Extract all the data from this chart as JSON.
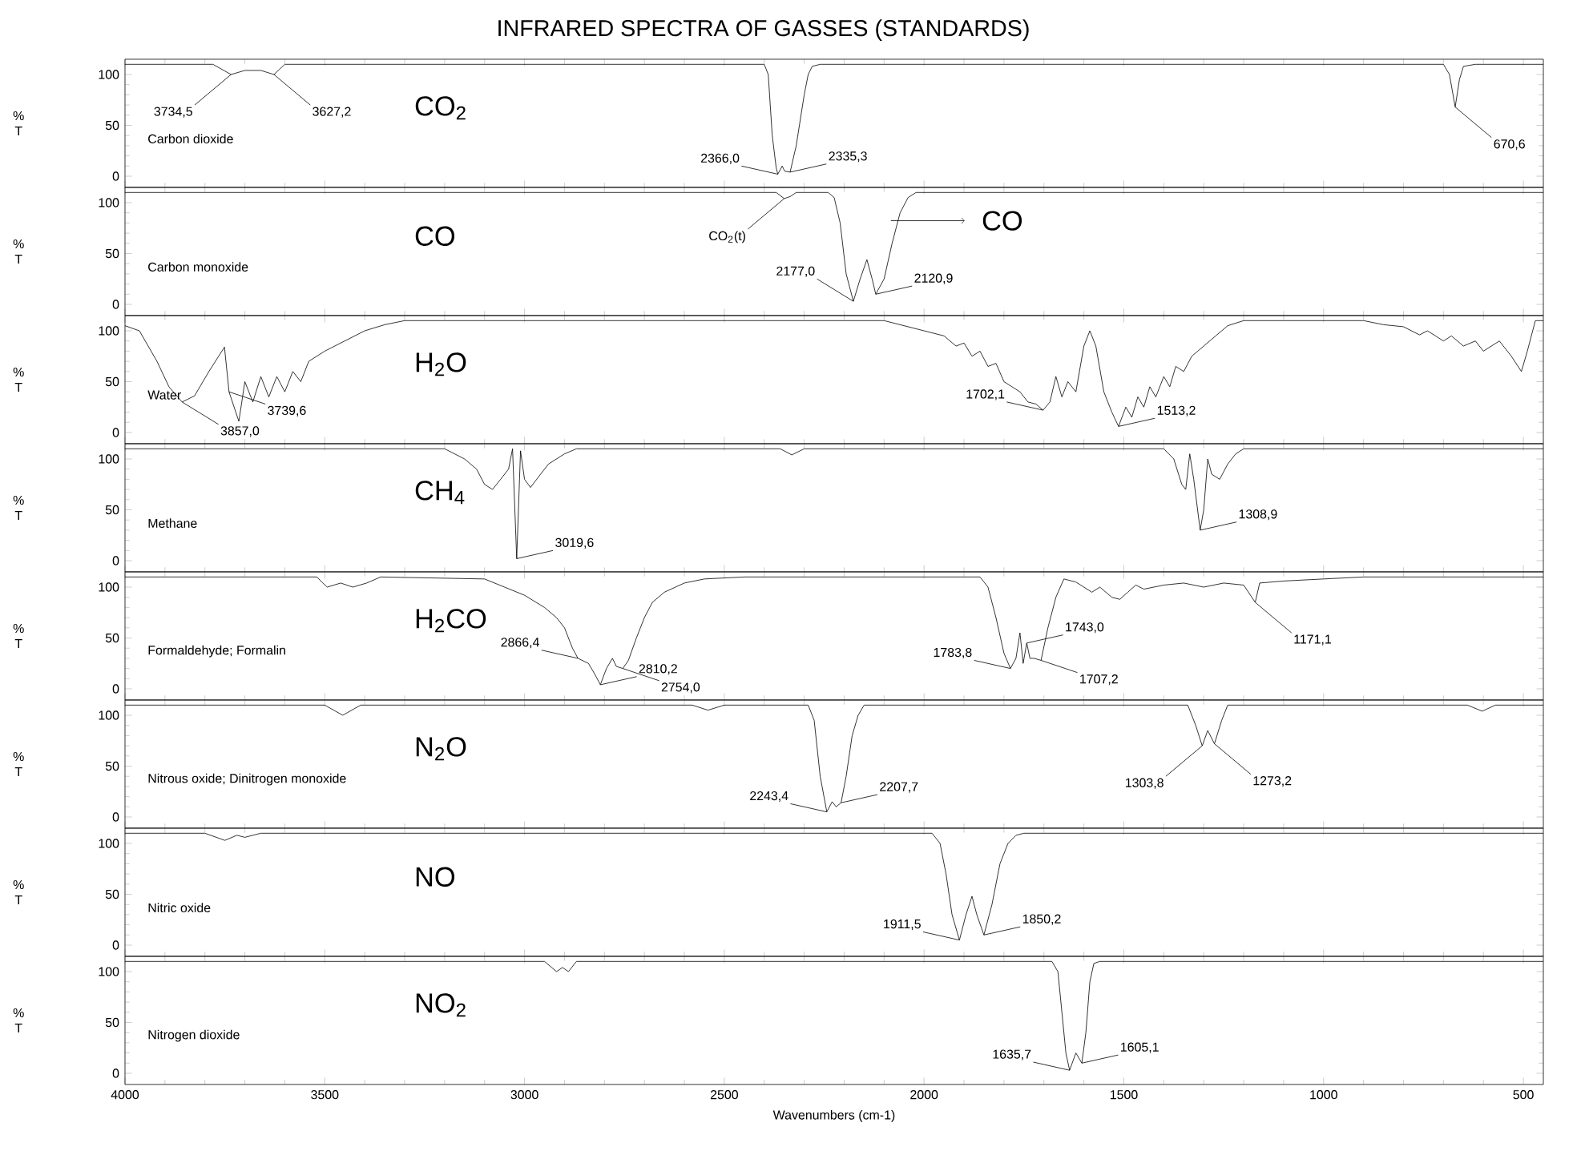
{
  "chart_data": [
    {
      "type": "line",
      "title": "INFRARED SPECTRA OF GASSES (STANDARDS)",
      "ylabel": "% T",
      "color": "#000000",
      "xlim": [
        4000,
        450
      ],
      "ylim": [
        -11,
        115
      ],
      "xticks": [
        4000,
        3500,
        3000,
        2500,
        2000,
        1500,
        1000,
        500
      ],
      "yticks": [
        0,
        50,
        100
      ],
      "tick_labels": "y",
      "x": [
        4000,
        3780,
        3734.5,
        3700,
        3660,
        3627.2,
        3600,
        2400,
        2390,
        2380,
        2370,
        2366,
        2355,
        2349,
        2335.3,
        2320,
        2300,
        2290,
        2280,
        2260,
        700,
        685,
        670.6,
        660,
        650,
        620,
        450
      ],
      "values": [
        110,
        110,
        100,
        104,
        104,
        100,
        110,
        110,
        100,
        40,
        8,
        2,
        10,
        5,
        4,
        30,
        80,
        100,
        108,
        110,
        110,
        100,
        68,
        95,
        108,
        110,
        110
      ],
      "annotations": [
        "Carbon dioxide",
        "CO$_{2}$",
        {
          "text": "3734,5",
          "x": 3734.5,
          "y": 100
        },
        {
          "text": "3627,2",
          "x": 3627.2,
          "y": 100
        },
        {
          "text": "2366,0",
          "x": 2366.0,
          "y": 2
        },
        {
          "text": "2335,3",
          "x": 2335.3,
          "y": 4
        },
        {
          "text": "670,6",
          "x": 670.6,
          "y": 68
        }
      ]
    },
    {
      "type": "line",
      "ylabel": "% T",
      "color": "#000000",
      "xlim": [
        4000,
        450
      ],
      "ylim": [
        -11,
        115
      ],
      "xticks": [
        4000,
        3500,
        3000,
        2500,
        2000,
        1500,
        1000,
        500
      ],
      "yticks": [
        0,
        50,
        100
      ],
      "tick_labels": "y",
      "x": [
        4000,
        2370,
        2350,
        2335,
        2320,
        2240,
        2225,
        2210,
        2195,
        2177,
        2160,
        2143,
        2130,
        2120.9,
        2100,
        2080,
        2060,
        2040,
        2020,
        450
      ],
      "values": [
        110,
        110,
        104,
        106,
        110,
        110,
        105,
        80,
        30,
        3,
        25,
        44,
        25,
        10,
        25,
        60,
        90,
        105,
        110,
        110
      ],
      "annotations": [
        "Carbon monoxide",
        "CO",
        "CO",
        {
          "text": "CO$_{2}$(t)",
          "x": 2350,
          "y": 104
        },
        {
          "text": "2177,0",
          "x": 2177.0,
          "y": 3
        },
        {
          "text": "2120,9",
          "x": 2120.9,
          "y": 10
        }
      ]
    },
    {
      "type": "line",
      "ylabel": "% T",
      "color": "#000000",
      "xlim": [
        4000,
        450
      ],
      "ylim": [
        -11,
        115
      ],
      "xticks": [
        4000,
        3500,
        3000,
        2500,
        2000,
        1500,
        1000,
        500
      ],
      "yticks": [
        0,
        50,
        100
      ],
      "tick_labels": "y",
      "x": [
        4000,
        3964,
        3920,
        3890,
        3857,
        3826,
        3790,
        3751,
        3739.6,
        3715,
        3700,
        3680,
        3660,
        3640,
        3620,
        3600,
        3580,
        3560,
        3540,
        3500,
        3450,
        3400,
        3350,
        3300,
        2100,
        2050,
        2000,
        1950,
        1920,
        1900,
        1880,
        1860,
        1840,
        1820,
        1800,
        1780,
        1760,
        1740,
        1720,
        1702.1,
        1685,
        1670,
        1655,
        1640,
        1620,
        1600,
        1585,
        1570,
        1550,
        1530,
        1513.2,
        1495,
        1480,
        1465,
        1450,
        1435,
        1420,
        1400,
        1385,
        1370,
        1350,
        1330,
        1300,
        1270,
        1240,
        1200,
        900,
        850,
        800,
        760,
        740,
        700,
        680,
        650,
        620,
        600,
        560,
        530,
        505,
        490,
        470,
        450
      ],
      "values": [
        105,
        100,
        70,
        45,
        30,
        36,
        60,
        84,
        40,
        11,
        50,
        30,
        55,
        35,
        55,
        40,
        60,
        50,
        70,
        80,
        90,
        100,
        106,
        110,
        110,
        105,
        100,
        95,
        85,
        88,
        75,
        80,
        65,
        68,
        50,
        45,
        40,
        30,
        28,
        22,
        30,
        55,
        35,
        50,
        40,
        85,
        100,
        85,
        40,
        20,
        6,
        25,
        15,
        35,
        25,
        45,
        35,
        55,
        45,
        65,
        60,
        75,
        85,
        95,
        105,
        110,
        110,
        106,
        104,
        96,
        100,
        90,
        95,
        85,
        90,
        80,
        90,
        75,
        60,
        80,
        110,
        110
      ],
      "annotations": [
        "Water",
        "H$_{2}$O",
        {
          "text": "3857,0",
          "x": 3857.0,
          "y": 30
        },
        {
          "text": "3739,6",
          "x": 3739.6,
          "y": 40
        },
        {
          "text": "1702,1",
          "x": 1702.1,
          "y": 22
        },
        {
          "text": "1513,2",
          "x": 1513.2,
          "y": 6
        }
      ]
    },
    {
      "type": "line",
      "ylabel": "% T",
      "color": "#000000",
      "xlim": [
        4000,
        450
      ],
      "ylim": [
        -11,
        115
      ],
      "xticks": [
        4000,
        3500,
        3000,
        2500,
        2000,
        1500,
        1000,
        500
      ],
      "yticks": [
        0,
        50,
        100
      ],
      "tick_labels": "y",
      "x": [
        4000,
        3200,
        3150,
        3120,
        3100,
        3080,
        3060,
        3040,
        3030,
        3019.6,
        3010,
        3000,
        2985,
        2960,
        2940,
        2900,
        2870,
        2360,
        2331,
        2300,
        1400,
        1375,
        1355,
        1345,
        1335,
        1325,
        1308.9,
        1300,
        1290,
        1280,
        1260,
        1240,
        1220,
        1200,
        450
      ],
      "values": [
        110,
        110,
        100,
        90,
        75,
        70,
        80,
        90,
        110,
        2,
        108,
        80,
        72,
        85,
        95,
        105,
        110,
        110,
        104,
        110,
        110,
        100,
        75,
        70,
        105,
        80,
        30,
        50,
        100,
        85,
        80,
        95,
        105,
        110,
        110
      ],
      "annotations": [
        "Methane",
        "CH$_{4}$",
        {
          "text": "3019,6",
          "x": 3019.6,
          "y": 2
        },
        {
          "text": "1308,9",
          "x": 1308.9,
          "y": 30
        }
      ]
    },
    {
      "type": "line",
      "ylabel": "% T",
      "color": "#000000",
      "xlim": [
        4000,
        450
      ],
      "ylim": [
        -11,
        115
      ],
      "xticks": [
        4000,
        3500,
        3000,
        2500,
        2000,
        1500,
        1000,
        500
      ],
      "yticks": [
        0,
        50,
        100
      ],
      "tick_labels": "y",
      "x": [
        4000,
        3520,
        3494,
        3460,
        3430,
        3395,
        3360,
        3100,
        3050,
        3000,
        2950,
        2920,
        2900,
        2880,
        2866.4,
        2840,
        2825,
        2810.2,
        2795,
        2780,
        2770,
        2754,
        2740,
        2720,
        2700,
        2680,
        2650,
        2600,
        2550,
        2450,
        1860,
        1840,
        1820,
        1800,
        1783.8,
        1770,
        1760,
        1752,
        1743,
        1735,
        1725,
        1707.2,
        1690,
        1670,
        1650,
        1620,
        1600,
        1580,
        1560,
        1530,
        1510,
        1490,
        1470,
        1450,
        1400,
        1350,
        1300,
        1250,
        1200,
        1171.1,
        1160,
        1100,
        1000,
        900,
        450
      ],
      "values": [
        110,
        110,
        100,
        104,
        100,
        104,
        110,
        108,
        100,
        92,
        80,
        70,
        60,
        40,
        30,
        25,
        15,
        4,
        20,
        30,
        22,
        20,
        28,
        50,
        70,
        85,
        95,
        104,
        108,
        110,
        110,
        100,
        70,
        35,
        20,
        30,
        55,
        25,
        45,
        30,
        30,
        28,
        60,
        90,
        108,
        105,
        100,
        95,
        100,
        90,
        88,
        95,
        102,
        98,
        102,
        104,
        100,
        104,
        102,
        85,
        104,
        106,
        108,
        110,
        110
      ],
      "annotations": [
        "Formaldehyde; Formalin",
        "H$_{2}$CO",
        {
          "text": "2866,4",
          "x": 2866.4,
          "y": 30
        },
        {
          "text": "2810,2",
          "x": 2810.2,
          "y": 4
        },
        {
          "text": "2754,0",
          "x": 2754.0,
          "y": 20
        },
        {
          "text": "1783,8",
          "x": 1783.8,
          "y": 20
        },
        {
          "text": "1743,0",
          "x": 1743.0,
          "y": 45
        },
        {
          "text": "1707,2",
          "x": 1707.2,
          "y": 28
        },
        {
          "text": "1171,1",
          "x": 1171.1,
          "y": 85
        }
      ]
    },
    {
      "type": "line",
      "ylabel": "% T",
      "color": "#000000",
      "xlim": [
        4000,
        450
      ],
      "ylim": [
        -11,
        115
      ],
      "xticks": [
        4000,
        3500,
        3000,
        2500,
        2000,
        1500,
        1000,
        500
      ],
      "yticks": [
        0,
        50,
        100
      ],
      "tick_labels": "y",
      "x": [
        4000,
        3500,
        3455,
        3410,
        2580,
        2541,
        2500,
        2290,
        2275,
        2260,
        2243.4,
        2230,
        2220,
        2207.7,
        2195,
        2180,
        2165,
        2150,
        1340,
        1320,
        1303.8,
        1290,
        1273.2,
        1255,
        1240,
        640,
        603,
        570,
        450
      ],
      "values": [
        110,
        110,
        100,
        110,
        110,
        105,
        110,
        110,
        95,
        40,
        5,
        15,
        10,
        14,
        40,
        80,
        100,
        110,
        110,
        90,
        70,
        85,
        72,
        95,
        110,
        110,
        104,
        110,
        110
      ],
      "annotations": [
        "Nitrous oxide; Dinitrogen monoxide",
        "N$_{2}$O",
        {
          "text": "2243,4",
          "x": 2243.4,
          "y": 5
        },
        {
          "text": "2207,7",
          "x": 2207.7,
          "y": 14
        },
        {
          "text": "1303,8",
          "x": 1303.8,
          "y": 70
        },
        {
          "text": "1273,2",
          "x": 1273.2,
          "y": 72
        }
      ]
    },
    {
      "type": "line",
      "ylabel": "% T",
      "color": "#000000",
      "xlim": [
        4000,
        450
      ],
      "ylim": [
        -11,
        115
      ],
      "xticks": [
        4000,
        3500,
        3000,
        2500,
        2000,
        1500,
        1000,
        500
      ],
      "yticks": [
        0,
        50,
        100
      ],
      "tick_labels": "y",
      "x": [
        4000,
        3800,
        3750,
        3720,
        3700,
        3660,
        1980,
        1960,
        1945,
        1930,
        1911.5,
        1895,
        1880,
        1868,
        1850.2,
        1830,
        1810,
        1790,
        1770,
        1750,
        450
      ],
      "values": [
        110,
        110,
        103,
        108,
        106,
        110,
        110,
        100,
        70,
        30,
        5,
        30,
        48,
        30,
        10,
        40,
        80,
        100,
        108,
        110,
        110
      ],
      "annotations": [
        "Nitric oxide",
        "NO",
        {
          "text": "1911,5",
          "x": 1911.5,
          "y": 5
        },
        {
          "text": "1850,2",
          "x": 1850.2,
          "y": 10
        }
      ]
    },
    {
      "type": "line",
      "xlabel": "Wavenumbers (cm-1)",
      "ylabel": "% T",
      "color": "#000000",
      "xlim": [
        4000,
        450
      ],
      "ylim": [
        -11,
        115
      ],
      "xticks": [
        4000,
        3500,
        3000,
        2500,
        2000,
        1500,
        1000,
        500
      ],
      "yticks": [
        0,
        50,
        100
      ],
      "x": [
        4000,
        2950,
        2920,
        2905,
        2890,
        2870,
        1680,
        1665,
        1655,
        1645,
        1635.7,
        1620,
        1605.1,
        1595,
        1585,
        1575,
        1560,
        450
      ],
      "values": [
        110,
        110,
        100,
        104,
        100,
        110,
        110,
        100,
        60,
        20,
        3,
        20,
        10,
        40,
        90,
        108,
        110,
        110
      ],
      "annotations": [
        "Nitrogen dioxide",
        "NO$_{2}$",
        {
          "text": "1635,7",
          "x": 1635.7,
          "y": 3
        },
        {
          "text": "1605,1",
          "x": 1605.1,
          "y": 10
        }
      ]
    }
  ]
}
